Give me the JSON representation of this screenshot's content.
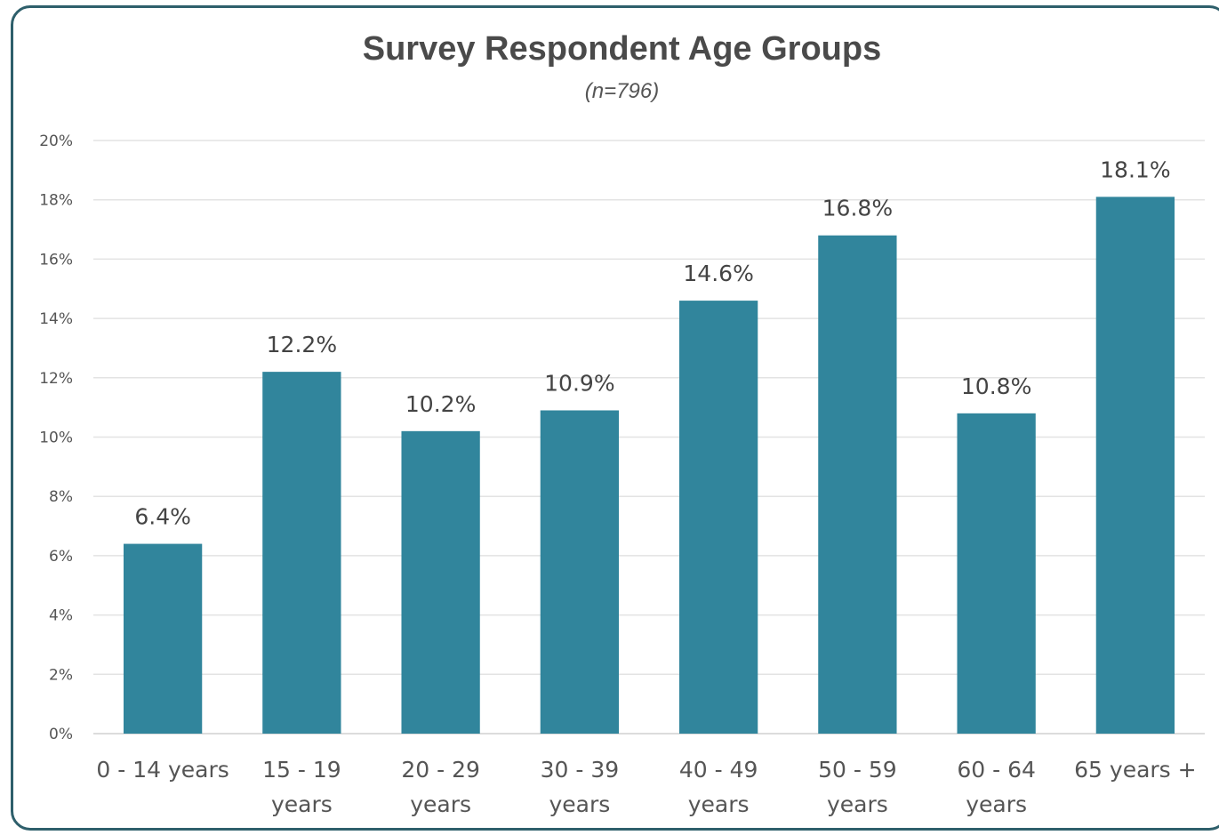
{
  "chart_data": {
    "type": "bar",
    "title": "Survey Respondent Age Groups",
    "subtitle": "(n=796)",
    "categories": [
      [
        "0 - 14 years"
      ],
      [
        "15 - 19",
        "years"
      ],
      [
        "20 - 29",
        "years"
      ],
      [
        "30 - 39",
        "years"
      ],
      [
        "40 - 49",
        "years"
      ],
      [
        "50 - 59",
        "years"
      ],
      [
        "60 - 64",
        "years"
      ],
      [
        "65 years +"
      ]
    ],
    "values": [
      6.4,
      12.2,
      10.2,
      10.9,
      14.6,
      16.8,
      10.8,
      18.1
    ],
    "data_labels": [
      "6.4%",
      "12.2%",
      "10.2%",
      "10.9%",
      "14.6%",
      "16.8%",
      "10.8%",
      "18.1%"
    ],
    "y_ticks": [
      "0%",
      "2%",
      "4%",
      "6%",
      "8%",
      "10%",
      "12%",
      "14%",
      "16%",
      "18%",
      "20%"
    ],
    "ylim": [
      0,
      20
    ],
    "grid": true,
    "legend": "none",
    "bar_color": "#31859c",
    "grid_color": "#e3e3e3",
    "border_color": "#2e5f6b"
  }
}
